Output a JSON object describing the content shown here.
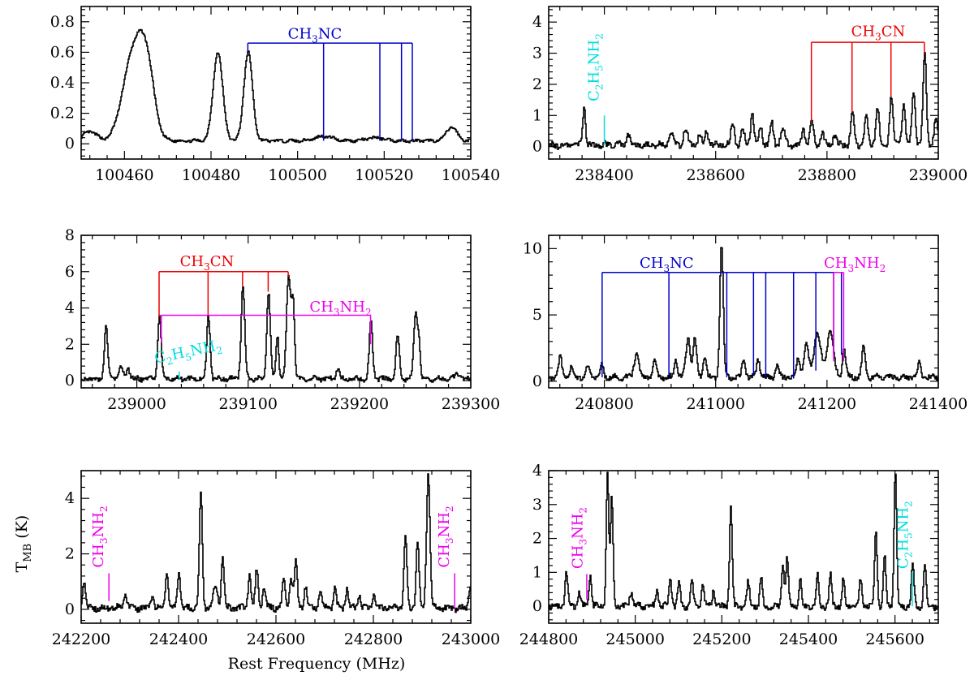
{
  "figure": {
    "x_axis_title": "Rest Frequency (MHz)",
    "y_axis_title_main": "T",
    "y_axis_title_sub": "MB",
    "y_axis_title_unit": " (K)",
    "colors": {
      "CH3NC": "#0000cc",
      "CH3CN": "#ee0000",
      "CH3NH2": "#ee00ee",
      "C2H5NH2": "#00dddd",
      "spectrum": "#000000"
    }
  },
  "chart_data": [
    {
      "type": "line",
      "xlim": [
        100450,
        100540
      ],
      "ylim": [
        -0.1,
        0.9
      ],
      "xticks": [
        100460,
        100480,
        100500,
        100520,
        100540
      ],
      "yticks": [
        0,
        0.2,
        0.4,
        0.6,
        0.8
      ],
      "ytick_labels": [
        "0",
        "0.2",
        "0.4",
        "0.6",
        "0.8"
      ],
      "baseline": 0.02,
      "noise": 0.008,
      "peaks": [
        [
          100460.5,
          0.26,
          2.0
        ],
        [
          100463.5,
          0.55,
          2.2
        ],
        [
          100465.5,
          0.2,
          1.5
        ],
        [
          100481.5,
          0.58,
          1.1
        ],
        [
          100488.5,
          0.58,
          1.0
        ],
        [
          100506,
          0.03,
          2
        ],
        [
          100518,
          0.02,
          2
        ],
        [
          100535.5,
          0.09,
          1.2
        ],
        [
          100452,
          0.06,
          1.5
        ]
      ],
      "markers": [
        {
          "molecule": "CH3NC",
          "label_parts": [
            [
              "CH",
              "n"
            ],
            [
              "3",
              "s"
            ],
            [
              "NC",
              "n"
            ]
          ],
          "x_label": 100504,
          "y_top": 0.66,
          "y_label": 0.69,
          "lines": [
            [
              100488.5,
              0.6
            ],
            [
              100506,
              0.02
            ],
            [
              100519,
              0.02
            ],
            [
              100524,
              0.02
            ],
            [
              100526.5,
              0.02
            ]
          ]
        }
      ]
    },
    {
      "type": "line",
      "xlim": [
        238300,
        239000
      ],
      "ylim": [
        -0.4,
        4.5
      ],
      "xticks": [
        238400,
        238600,
        238800,
        239000
      ],
      "yticks": [
        0,
        1,
        2,
        3,
        4
      ],
      "ytick_labels": [
        "0",
        "1",
        "2",
        "3",
        "4"
      ],
      "baseline": 0.05,
      "noise": 0.09,
      "peaks": [
        [
          238363,
          1.25,
          2.5
        ],
        [
          238442,
          0.35,
          3
        ],
        [
          238520,
          0.35,
          4
        ],
        [
          238545,
          0.45,
          4
        ],
        [
          238570,
          0.3,
          3
        ],
        [
          238583,
          0.45,
          3
        ],
        [
          238630,
          0.75,
          3
        ],
        [
          238648,
          0.5,
          3
        ],
        [
          238665,
          1.0,
          3
        ],
        [
          238680,
          0.6,
          3
        ],
        [
          238700,
          0.7,
          3
        ],
        [
          238720,
          0.55,
          4
        ],
        [
          238757,
          0.5,
          3
        ],
        [
          238772,
          0.75,
          3
        ],
        [
          238791,
          0.4,
          3
        ],
        [
          238813,
          0.3,
          3
        ],
        [
          238845,
          1.1,
          3
        ],
        [
          238870,
          0.9,
          3
        ],
        [
          238890,
          1.2,
          3
        ],
        [
          238915,
          1.55,
          3
        ],
        [
          238937,
          1.3,
          3
        ],
        [
          238955,
          1.75,
          3
        ],
        [
          238975,
          3.0,
          3
        ],
        [
          238995,
          0.8,
          3
        ]
      ],
      "markers": [
        {
          "molecule": "CH3CN",
          "label_parts": [
            [
              "CH",
              "n"
            ],
            [
              "3",
              "s"
            ],
            [
              "CN",
              "n"
            ]
          ],
          "x_label": 238892,
          "y_top": 3.35,
          "y_label": 3.55,
          "lines": [
            [
              238772,
              0.8
            ],
            [
              238845,
              1.1
            ],
            [
              238915,
              1.6
            ],
            [
              238975,
              3.0
            ]
          ]
        },
        {
          "molecule": "C2H5NH2",
          "label_parts": [
            [
              "C",
              "n"
            ],
            [
              "2",
              "s"
            ],
            [
              "H",
              "n"
            ],
            [
              "5",
              "s"
            ],
            [
              "NH",
              "n"
            ],
            [
              "2",
              "s"
            ]
          ],
          "vertical": true,
          "x_label": 238390,
          "y_label": 1.45,
          "lines": [
            [
              238400,
              1.0,
              0.05
            ]
          ]
        }
      ]
    },
    {
      "type": "line",
      "xlim": [
        238950,
        239300
      ],
      "ylim": [
        -0.4,
        8.0
      ],
      "xticks": [
        239000,
        239100,
        239200,
        239300
      ],
      "yticks": [
        0,
        2,
        4,
        6,
        8
      ],
      "ytick_labels": [
        "0",
        "2",
        "4",
        "6",
        "8"
      ],
      "baseline": 0.1,
      "noise": 0.12,
      "peaks": [
        [
          238972,
          2.9,
          1.5
        ],
        [
          238985,
          0.6,
          2
        ],
        [
          238992,
          0.6,
          1.5
        ],
        [
          239020,
          3.4,
          1.5
        ],
        [
          239064,
          3.5,
          1.5
        ],
        [
          239095,
          5.1,
          1.6
        ],
        [
          239118,
          4.8,
          1.6
        ],
        [
          239126,
          2.4,
          1.2
        ],
        [
          239136,
          5.6,
          1.8
        ],
        [
          239140,
          4.2,
          1.4
        ],
        [
          239180,
          0.6,
          1.5
        ],
        [
          239210,
          3.1,
          1.5
        ],
        [
          239234,
          2.4,
          1.5
        ],
        [
          239250,
          3.5,
          1.6
        ],
        [
          239253,
          2.0,
          1.3
        ],
        [
          239288,
          0.3,
          2
        ]
      ],
      "markers": [
        {
          "molecule": "CH3CN",
          "label_parts": [
            [
              "CH",
              "n"
            ],
            [
              "3",
              "s"
            ],
            [
              "CN",
              "n"
            ]
          ],
          "x_label": 239063,
          "y_top": 6.0,
          "y_label": 6.3,
          "lines": [
            [
              239020,
              3.5
            ],
            [
              239064,
              3.6
            ],
            [
              239095,
              5.2
            ],
            [
              239118,
              4.9
            ],
            [
              239136,
              5.7
            ]
          ]
        },
        {
          "molecule": "CH3NH2",
          "label_parts": [
            [
              "CH",
              "n"
            ],
            [
              "3",
              "s"
            ],
            [
              "NH",
              "n"
            ],
            [
              "2",
              "s"
            ]
          ],
          "x_label": 239183,
          "y_top": 3.6,
          "y_label": 3.8,
          "lines": [
            [
              239022,
              2.1
            ],
            [
              239210,
              2.0
            ]
          ]
        },
        {
          "molecule": "C2H5NH2",
          "label_parts": [
            [
              "C",
              "n"
            ],
            [
              "2",
              "s"
            ],
            [
              "H",
              "n"
            ],
            [
              "5",
              "s"
            ],
            [
              "NH",
              "n"
            ],
            [
              "2",
              "s"
            ]
          ],
          "rotate": -12,
          "x_label": 239017,
          "y_label": 0.95,
          "lines": [
            [
              239038,
              0.5,
              0.05
            ]
          ]
        }
      ]
    },
    {
      "type": "line",
      "xlim": [
        240700,
        241400
      ],
      "ylim": [
        -0.5,
        11.0
      ],
      "xticks": [
        240800,
        241000,
        241200,
        241400
      ],
      "yticks": [
        0,
        5,
        10
      ],
      "ytick_labels": [
        "0",
        "5",
        "10"
      ],
      "baseline": 0.3,
      "noise": 0.18,
      "peaks": [
        [
          240720,
          1.5,
          3
        ],
        [
          240740,
          0.8,
          3
        ],
        [
          240770,
          0.8,
          3
        ],
        [
          240795,
          0.9,
          3
        ],
        [
          240857,
          1.8,
          4
        ],
        [
          240890,
          1.2,
          3
        ],
        [
          240928,
          1.3,
          3
        ],
        [
          240950,
          2.9,
          4
        ],
        [
          240962,
          3.0,
          3
        ],
        [
          240980,
          1.6,
          3
        ],
        [
          241010,
          10.1,
          3
        ],
        [
          241050,
          1.4,
          3
        ],
        [
          241076,
          1.4,
          3
        ],
        [
          241110,
          0.8,
          3
        ],
        [
          241148,
          1.5,
          3
        ],
        [
          241162,
          2.6,
          4
        ],
        [
          241182,
          3.4,
          6
        ],
        [
          241205,
          3.5,
          6
        ],
        [
          241230,
          2.2,
          3
        ],
        [
          241265,
          2.3,
          3
        ],
        [
          241365,
          1.0,
          3
        ]
      ],
      "markers": [
        {
          "molecule": "CH3NC",
          "label_parts": [
            [
              "CH",
              "n"
            ],
            [
              "3",
              "s"
            ],
            [
              "NC",
              "n"
            ]
          ],
          "x_label": 240912,
          "y_top": 8.2,
          "y_label": 8.55,
          "lines": [
            [
              240796,
              0.3
            ],
            [
              240916,
              0.4
            ],
            [
              241020,
              0.3
            ],
            [
              241068,
              0.5
            ],
            [
              241090,
              0.3
            ],
            [
              241140,
              0.2
            ],
            [
              241180,
              0.8
            ],
            [
              241212,
              2.0
            ],
            [
              241226,
              2.0
            ]
          ]
        },
        {
          "molecule": "CH3NH2",
          "label_parts": [
            [
              "CH",
              "n"
            ],
            [
              "3",
              "s"
            ],
            [
              "NH",
              "n"
            ],
            [
              "2",
              "s"
            ]
          ],
          "x_label": 241250,
          "y_top": 8.2,
          "y_label": 8.55,
          "lines": [
            [
              241212,
              1.5
            ],
            [
              241230,
              1.5
            ]
          ]
        }
      ]
    },
    {
      "type": "line",
      "xlim": [
        242200,
        243000
      ],
      "ylim": [
        -0.5,
        5.0
      ],
      "xticks": [
        242200,
        242400,
        242600,
        242800,
        243000
      ],
      "yticks": [
        0,
        2,
        4
      ],
      "ytick_labels": [
        "0",
        "2",
        "4"
      ],
      "baseline": 0.05,
      "noise": 0.1,
      "peaks": [
        [
          242205,
          1.0,
          3
        ],
        [
          242290,
          0.5,
          3
        ],
        [
          242345,
          0.45,
          3
        ],
        [
          242375,
          1.35,
          3
        ],
        [
          242400,
          1.35,
          3
        ],
        [
          242445,
          4.2,
          3
        ],
        [
          242475,
          0.8,
          4
        ],
        [
          242490,
          1.8,
          3
        ],
        [
          242545,
          1.2,
          3
        ],
        [
          242560,
          1.4,
          3
        ],
        [
          242575,
          0.8,
          3
        ],
        [
          242615,
          1.0,
          3
        ],
        [
          242630,
          1.1,
          3
        ],
        [
          242640,
          1.7,
          3
        ],
        [
          242660,
          0.8,
          3
        ],
        [
          242690,
          0.6,
          3
        ],
        [
          242720,
          0.7,
          3
        ],
        [
          242745,
          0.7,
          3
        ],
        [
          242770,
          0.5,
          3
        ],
        [
          242800,
          0.5,
          3
        ],
        [
          242865,
          2.6,
          3
        ],
        [
          242890,
          2.4,
          3
        ],
        [
          242912,
          4.9,
          3.5
        ],
        [
          242998,
          0.8,
          3
        ]
      ],
      "markers": [
        {
          "molecule": "CH3NH2",
          "label_parts": [
            [
              "CH",
              "n"
            ],
            [
              "3",
              "s"
            ],
            [
              "NH",
              "n"
            ],
            [
              "2",
              "s"
            ]
          ],
          "vertical": true,
          "x_label": 242245,
          "y_label": 1.5,
          "lines": [
            [
              242257,
              1.3,
              0.3
            ]
          ]
        },
        {
          "molecule": "CH3NH2",
          "label_parts": [
            [
              "CH",
              "n"
            ],
            [
              "3",
              "s"
            ],
            [
              "NH",
              "n"
            ],
            [
              "2",
              "s"
            ]
          ],
          "vertical": true,
          "x_label": 242955,
          "y_label": 1.5,
          "lines": [
            [
              242967,
              1.3,
              0.0
            ]
          ]
        }
      ]
    },
    {
      "type": "line",
      "xlim": [
        244800,
        245700
      ],
      "ylim": [
        -0.5,
        4.0
      ],
      "xticks": [
        244800,
        245000,
        245200,
        245400,
        245600
      ],
      "yticks": [
        0,
        1,
        2,
        3,
        4
      ],
      "ytick_labels": [
        "0",
        "1",
        "2",
        "3",
        "4"
      ],
      "baseline": 0.0,
      "noise": 0.08,
      "peaks": [
        [
          244840,
          1.0,
          3
        ],
        [
          244870,
          0.4,
          3
        ],
        [
          244895,
          0.9,
          3
        ],
        [
          244935,
          3.9,
          3
        ],
        [
          244945,
          3.2,
          3
        ],
        [
          244990,
          0.4,
          4
        ],
        [
          245050,
          0.5,
          3
        ],
        [
          245080,
          0.9,
          3
        ],
        [
          245100,
          0.7,
          3
        ],
        [
          245130,
          0.8,
          3
        ],
        [
          245155,
          0.6,
          3
        ],
        [
          245180,
          0.5,
          3
        ],
        [
          245220,
          3.0,
          3
        ],
        [
          245260,
          0.7,
          3
        ],
        [
          245290,
          0.8,
          3
        ],
        [
          245340,
          1.2,
          3
        ],
        [
          245350,
          1.4,
          3
        ],
        [
          245380,
          0.8,
          3
        ],
        [
          245420,
          0.9,
          3
        ],
        [
          245450,
          0.9,
          3
        ],
        [
          245480,
          0.8,
          3
        ],
        [
          245520,
          0.8,
          3
        ],
        [
          245555,
          2.2,
          3
        ],
        [
          245575,
          1.5,
          3
        ],
        [
          245600,
          4.0,
          3
        ],
        [
          245640,
          1.3,
          3
        ],
        [
          245668,
          1.2,
          3
        ]
      ],
      "markers": [
        {
          "molecule": "CH3NH2",
          "label_parts": [
            [
              "CH",
              "n"
            ],
            [
              "3",
              "s"
            ],
            [
              "NH",
              "n"
            ],
            [
              "2",
              "s"
            ]
          ],
          "vertical": true,
          "x_label": 244878,
          "y_label": 1.1,
          "lines": [
            [
              244888,
              0.95,
              0.2
            ]
          ]
        },
        {
          "molecule": "C2H5NH2",
          "label_parts": [
            [
              "C",
              "n"
            ],
            [
              "2",
              "s"
            ],
            [
              "H",
              "n"
            ],
            [
              "5",
              "s"
            ],
            [
              "NH",
              "n"
            ],
            [
              "2",
              "s"
            ]
          ],
          "vertical": true,
          "x_label": 245630,
          "y_label": 1.1,
          "lines": [
            [
              245640,
              1.0,
              0.0
            ]
          ]
        }
      ]
    }
  ]
}
